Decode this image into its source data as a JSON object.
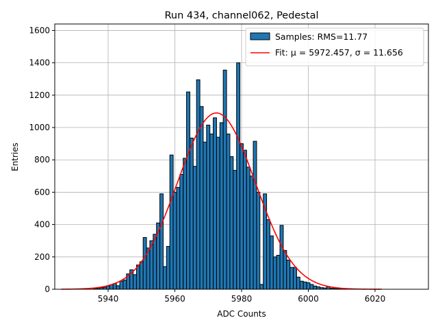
{
  "chart_data": {
    "type": "bar",
    "title": "Run 434, channel062, Pedestal",
    "xlabel": "ADC Counts",
    "ylabel": "Entries",
    "xlim": [
      5924,
      6036
    ],
    "ylim": [
      0,
      1640
    ],
    "xticks": [
      5940,
      5960,
      5980,
      6000,
      6020
    ],
    "yticks": [
      0,
      200,
      400,
      600,
      800,
      1000,
      1200,
      1400,
      1600
    ],
    "grid": true,
    "legend_position": "top-right",
    "bin_width": 1,
    "series": [
      {
        "name": "Samples: RMS=11.77",
        "x": [
          5936,
          5937,
          5938,
          5939,
          5940,
          5941,
          5942,
          5943,
          5944,
          5945,
          5946,
          5947,
          5948,
          5949,
          5950,
          5951,
          5952,
          5953,
          5954,
          5955,
          5956,
          5957,
          5958,
          5959,
          5960,
          5961,
          5962,
          5963,
          5964,
          5965,
          5966,
          5967,
          5968,
          5969,
          5970,
          5971,
          5972,
          5973,
          5974,
          5975,
          5976,
          5977,
          5978,
          5979,
          5980,
          5981,
          5982,
          5983,
          5984,
          5985,
          5986,
          5987,
          5988,
          5989,
          5990,
          5991,
          5992,
          5993,
          5994,
          5995,
          5996,
          5997,
          5998,
          5999,
          6000,
          6001,
          6002,
          6003,
          6004,
          6005,
          6006,
          6007,
          6008,
          6009,
          6010
        ],
        "values": [
          3,
          5,
          10,
          12,
          20,
          28,
          35,
          22,
          50,
          57,
          95,
          120,
          90,
          150,
          170,
          320,
          255,
          300,
          340,
          410,
          590,
          140,
          265,
          830,
          600,
          630,
          710,
          810,
          1220,
          935,
          760,
          1295,
          1130,
          910,
          1015,
          960,
          1060,
          940,
          1030,
          1355,
          960,
          820,
          735,
          1400,
          900,
          860,
          755,
          700,
          915,
          600,
          30,
          590,
          430,
          330,
          200,
          210,
          395,
          240,
          180,
          135,
          135,
          75,
          50,
          45,
          40,
          30,
          20,
          15,
          10,
          8,
          15,
          6,
          5,
          3,
          2
        ]
      }
    ],
    "fit": {
      "name": "Fit: μ = 5972.457, σ = 11.656",
      "type": "gaussian",
      "mu": 5972.457,
      "sigma": 11.656,
      "amplitude": 1090,
      "x_range": [
        5926,
        6022
      ],
      "color": "#ff0000"
    },
    "colors": {
      "bar_fill": "#1f77b4",
      "bar_edge": "#000000",
      "fit_line": "#ff0000",
      "grid": "#b0b0b0"
    }
  }
}
